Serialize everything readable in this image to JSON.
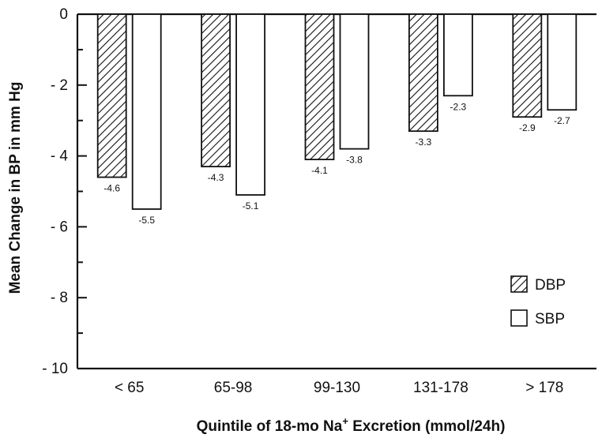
{
  "chart_data": {
    "type": "bar",
    "categories": [
      "< 65",
      "65-98",
      "99-130",
      "131-178",
      "> 178"
    ],
    "series": [
      {
        "name": "DBP",
        "values": [
          -4.6,
          -4.3,
          -4.1,
          -3.3,
          -2.9
        ],
        "labels": [
          "-4.6",
          "-4.3",
          "-4.1",
          "-3.3",
          "-2.9"
        ],
        "pattern": "hatched"
      },
      {
        "name": "SBP",
        "values": [
          -5.5,
          -5.1,
          -3.8,
          -2.3,
          -2.7
        ],
        "labels": [
          "-5.5",
          "-5.1",
          "-3.8",
          "-2.3",
          "-2.7"
        ],
        "pattern": "open"
      }
    ],
    "ylabel": "Mean Change in BP in mm Hg",
    "xlabel_main": "Quintile of 18-mo Na",
    "xlabel_sup": "+",
    "xlabel_rest": " Excretion (mmol/24h)",
    "ylim": [
      -10,
      0
    ],
    "yticks": [
      0,
      -2,
      -4,
      -6,
      -8,
      -10
    ],
    "ytick_labels": [
      "0",
      "- 2",
      "- 4",
      "- 6",
      "- 8",
      "- 10"
    ],
    "grid": false,
    "legend_position": "bottom-right"
  }
}
